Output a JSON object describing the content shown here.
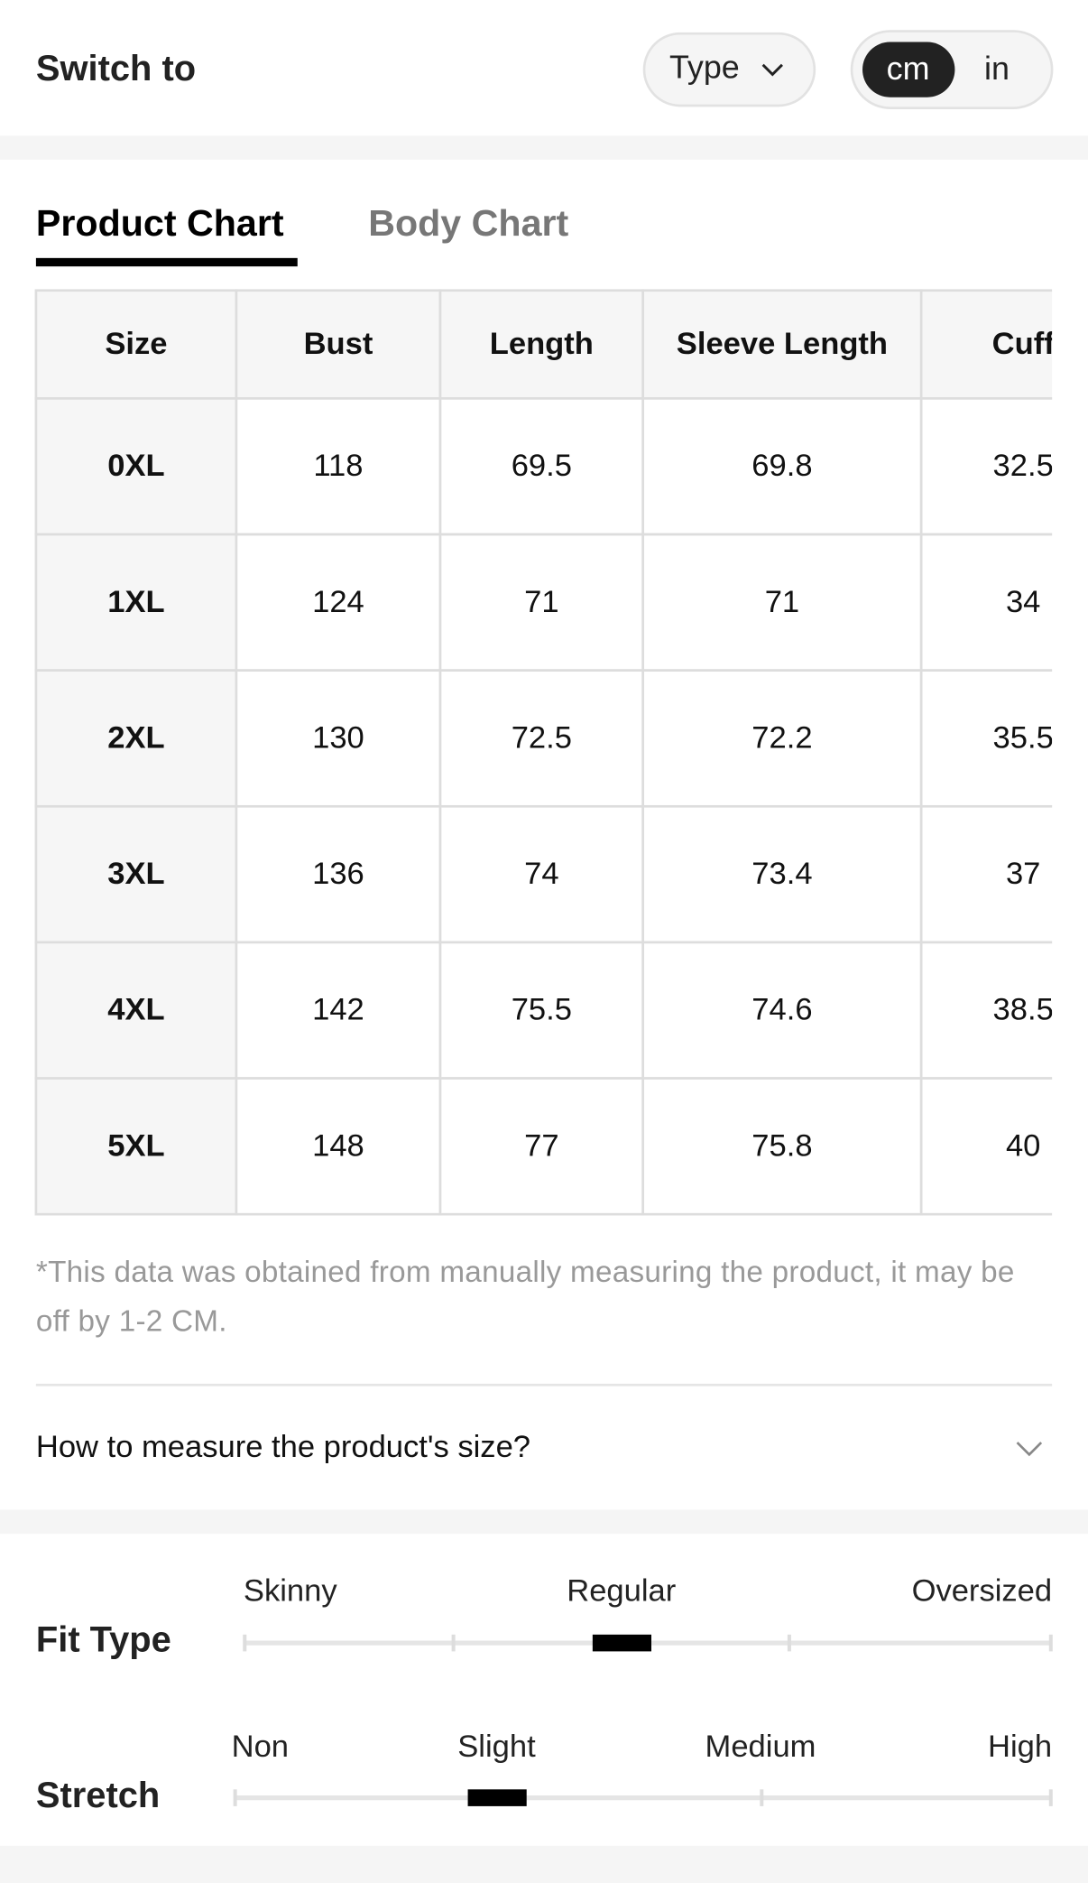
{
  "header": {
    "title": "Switch to",
    "type_button": "Type",
    "units": [
      "cm",
      "in"
    ]
  },
  "tabs": [
    "Product Chart",
    "Body Chart"
  ],
  "table": {
    "columns": [
      "Size",
      "Bust",
      "Length",
      "Sleeve Length",
      "Cuff"
    ],
    "rows": [
      [
        "0XL",
        "118",
        "69.5",
        "69.8",
        "32.5"
      ],
      [
        "1XL",
        "124",
        "71",
        "71",
        "34"
      ],
      [
        "2XL",
        "130",
        "72.5",
        "72.2",
        "35.5"
      ],
      [
        "3XL",
        "136",
        "74",
        "73.4",
        "37"
      ],
      [
        "4XL",
        "142",
        "75.5",
        "74.6",
        "38.5"
      ],
      [
        "5XL",
        "148",
        "77",
        "75.8",
        "40"
      ]
    ]
  },
  "note": "*This data was obtained from manually measuring the product, it may be off by 1-2 CM.",
  "measure_link": "How to measure the product's size?",
  "fit": {
    "fit_type": {
      "label": "Fit Type",
      "scale": [
        "Skinny",
        "Regular",
        "Oversized"
      ]
    },
    "stretch": {
      "label": "Stretch",
      "scale": [
        "Non",
        "Slight",
        "Medium",
        "High"
      ]
    }
  }
}
